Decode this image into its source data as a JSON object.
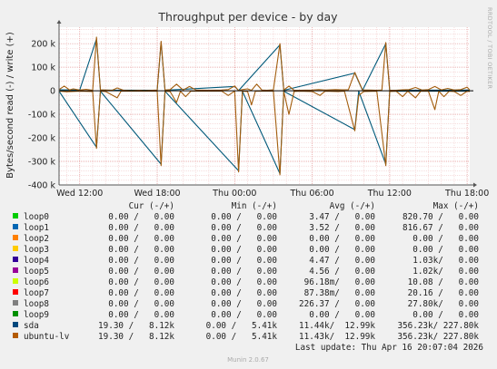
{
  "chart_data": {
    "type": "line",
    "title": "Throughput per device - by day",
    "ylabel": "Bytes/second read (-) / write (+)",
    "ylim": [
      -400000,
      270000
    ],
    "yticks": [
      {
        "v": 200000,
        "label": "200 k"
      },
      {
        "v": 100000,
        "label": "100 k"
      },
      {
        "v": 0,
        "label": "0"
      },
      {
        "v": -100000,
        "label": "-100 k"
      },
      {
        "v": -200000,
        "label": "-200 k"
      },
      {
        "v": -300000,
        "label": "-300 k"
      },
      {
        "v": -400000,
        "label": "-400 k"
      }
    ],
    "xlim": [
      -1.6,
      30.2
    ],
    "xticks": [
      {
        "h": 0,
        "label": "Wed 12:00"
      },
      {
        "h": 6,
        "label": "Wed 18:00"
      },
      {
        "h": 12,
        "label": "Thu 00:00"
      },
      {
        "h": 18,
        "label": "Thu 06:00"
      },
      {
        "h": 24,
        "label": "Thu 12:00"
      },
      {
        "h": 30,
        "label": "Thu 18:00"
      }
    ],
    "x_unit": "hours since Wed 12:00",
    "grid": true,
    "series": [
      {
        "name": "ubuntu-lv",
        "color": "#a35d0d",
        "write_points": [
          [
            -1.6,
            5000
          ],
          [
            -1.2,
            20000
          ],
          [
            -0.8,
            4000
          ],
          [
            -0.5,
            8000
          ],
          [
            0,
            3000
          ],
          [
            0.5,
            6000
          ],
          [
            1,
            2000
          ],
          [
            1.3,
            228000
          ],
          [
            1.6,
            4000
          ],
          [
            2,
            3000
          ],
          [
            2.5,
            2000
          ],
          [
            2.9,
            12000
          ],
          [
            3.4,
            2000
          ],
          [
            4,
            1000
          ],
          [
            4.6,
            2000
          ],
          [
            5,
            1000
          ],
          [
            5.6,
            2000
          ],
          [
            6,
            3000
          ],
          [
            6.3,
            210000
          ],
          [
            6.6,
            3000
          ],
          [
            7,
            5000
          ],
          [
            7.5,
            28000
          ],
          [
            8,
            3000
          ],
          [
            8.5,
            18000
          ],
          [
            9,
            3000
          ],
          [
            10,
            2000
          ],
          [
            11,
            3000
          ],
          [
            11.5,
            5000
          ],
          [
            12,
            20000
          ],
          [
            12.3,
            1000
          ],
          [
            12.6,
            5000
          ],
          [
            13,
            8000
          ],
          [
            13.3,
            2000
          ],
          [
            13.7,
            28000
          ],
          [
            14.1,
            3000
          ],
          [
            14.5,
            2000
          ],
          [
            15,
            4000
          ],
          [
            15.5,
            200000
          ],
          [
            15.8,
            3000
          ],
          [
            16.2,
            20000
          ],
          [
            16.6,
            2000
          ],
          [
            17,
            2000
          ],
          [
            18,
            3000
          ],
          [
            18.5,
            5000
          ],
          [
            19,
            3000
          ],
          [
            19.8,
            5000
          ],
          [
            20.3,
            4000
          ],
          [
            20.8,
            4000
          ],
          [
            21.3,
            78000
          ],
          [
            21.6,
            40000
          ],
          [
            21.9,
            3000
          ],
          [
            22.4,
            3000
          ],
          [
            23,
            2000
          ],
          [
            23.4,
            3000
          ],
          [
            23.7,
            205000
          ],
          [
            24,
            2000
          ],
          [
            24.5,
            2000
          ],
          [
            25,
            4000
          ],
          [
            25.5,
            5000
          ],
          [
            26,
            14000
          ],
          [
            26.5,
            3000
          ],
          [
            27,
            5000
          ],
          [
            27.5,
            18000
          ],
          [
            28,
            4000
          ],
          [
            28.5,
            10000
          ],
          [
            29,
            3000
          ],
          [
            29.5,
            5000
          ],
          [
            30,
            15000
          ],
          [
            30.2,
            3000
          ]
        ],
        "read_points": [
          [
            -1.6,
            -2000
          ],
          [
            -1,
            -4000
          ],
          [
            0,
            -2000
          ],
          [
            1,
            -3000
          ],
          [
            1.3,
            -245000
          ],
          [
            1.6,
            -2000
          ],
          [
            2,
            -3000
          ],
          [
            2.9,
            -30000
          ],
          [
            3.2,
            -2000
          ],
          [
            4,
            -1000
          ],
          [
            5,
            -2000
          ],
          [
            6,
            -1000
          ],
          [
            6.3,
            -318000
          ],
          [
            6.6,
            -2000
          ],
          [
            7,
            -3000
          ],
          [
            7.5,
            -50000
          ],
          [
            7.8,
            -2000
          ],
          [
            8.2,
            -25000
          ],
          [
            8.6,
            -2000
          ],
          [
            10,
            -1000
          ],
          [
            11,
            -2000
          ],
          [
            11.5,
            -20000
          ],
          [
            12,
            -1000
          ],
          [
            12.3,
            -345000
          ],
          [
            12.6,
            -2000
          ],
          [
            13,
            -3000
          ],
          [
            13.3,
            -60000
          ],
          [
            13.6,
            -2000
          ],
          [
            14,
            -1000
          ],
          [
            15,
            -2000
          ],
          [
            15.5,
            -357000
          ],
          [
            15.8,
            -3000
          ],
          [
            16.2,
            -100000
          ],
          [
            16.6,
            -3000
          ],
          [
            17,
            -2000
          ],
          [
            18,
            -3000
          ],
          [
            18.6,
            -20000
          ],
          [
            19,
            -2000
          ],
          [
            20,
            -3000
          ],
          [
            20.5,
            -2000
          ],
          [
            21.3,
            -170000
          ],
          [
            21.6,
            -20000
          ],
          [
            22,
            -3000
          ],
          [
            23,
            -2000
          ],
          [
            23.7,
            -318000
          ],
          [
            24,
            -3000
          ],
          [
            24.5,
            -2000
          ],
          [
            25,
            -25000
          ],
          [
            25.4,
            -2000
          ],
          [
            26,
            -30000
          ],
          [
            26.4,
            -2000
          ],
          [
            27,
            -2000
          ],
          [
            27.5,
            -80000
          ],
          [
            27.8,
            -2000
          ],
          [
            28.2,
            -25000
          ],
          [
            28.6,
            -2000
          ],
          [
            29,
            -3000
          ],
          [
            29.5,
            -20000
          ],
          [
            30,
            -2000
          ],
          [
            30.2,
            -3000
          ]
        ]
      },
      {
        "name": "sda",
        "color": "#00597a",
        "write_points": [
          [
            -1.6,
            4000
          ],
          [
            0,
            3000
          ],
          [
            1.3,
            220000
          ],
          [
            1.6,
            3000
          ],
          [
            6,
            2000
          ],
          [
            6.3,
            205000
          ],
          [
            6.6,
            2000
          ],
          [
            12,
            18000
          ],
          [
            12.3,
            1000
          ],
          [
            15.5,
            195000
          ],
          [
            15.8,
            2000
          ],
          [
            21.3,
            75000
          ],
          [
            21.9,
            2000
          ],
          [
            23.7,
            200000
          ],
          [
            24,
            2000
          ],
          [
            30.2,
            3000
          ]
        ],
        "read_points": [
          [
            -1.6,
            -2000
          ],
          [
            1.3,
            -240000
          ],
          [
            1.6,
            -2000
          ],
          [
            6.3,
            -312000
          ],
          [
            6.6,
            -2000
          ],
          [
            12.3,
            -340000
          ],
          [
            12.6,
            -2000
          ],
          [
            15.5,
            -352000
          ],
          [
            15.8,
            -2000
          ],
          [
            21.3,
            -165000
          ],
          [
            21.6,
            -2000
          ],
          [
            23.7,
            -312000
          ],
          [
            24,
            -2000
          ],
          [
            30.2,
            -2000
          ]
        ]
      }
    ]
  },
  "side_text": "RRDTOOL / TOBI OETIKER",
  "legend": {
    "headers": {
      "cur": "Cur (-/+)",
      "min": "Min (-/+)",
      "avg": "Avg (-/+)",
      "max": "Max (-/+)"
    },
    "rows": [
      {
        "name": "loop0",
        "color": "#00cc00",
        "cur": "0.00 /   0.00",
        "min": "0.00 /   0.00",
        "avg": "3.47 /   0.00",
        "max": "820.70 /   0.00"
      },
      {
        "name": "loop1",
        "color": "#0066b3",
        "cur": "0.00 /   0.00",
        "min": "0.00 /   0.00",
        "avg": "3.52 /   0.00",
        "max": "816.67 /   0.00"
      },
      {
        "name": "loop2",
        "color": "#ff8000",
        "cur": "0.00 /   0.00",
        "min": "0.00 /   0.00",
        "avg": "0.00 /   0.00",
        "max": "0.00 /   0.00"
      },
      {
        "name": "loop3",
        "color": "#ffcc00",
        "cur": "0.00 /   0.00",
        "min": "0.00 /   0.00",
        "avg": "0.00 /   0.00",
        "max": "0.00 /   0.00"
      },
      {
        "name": "loop4",
        "color": "#330099",
        "cur": "0.00 /   0.00",
        "min": "0.00 /   0.00",
        "avg": "4.47 /   0.00",
        "max": "1.03k/   0.00"
      },
      {
        "name": "loop5",
        "color": "#990099",
        "cur": "0.00 /   0.00",
        "min": "0.00 /   0.00",
        "avg": "4.56 /   0.00",
        "max": "1.02k/   0.00"
      },
      {
        "name": "loop6",
        "color": "#ccff00",
        "cur": "0.00 /   0.00",
        "min": "0.00 /   0.00",
        "avg": "96.18m/   0.00",
        "max": "10.08 /   0.00"
      },
      {
        "name": "loop7",
        "color": "#ff0000",
        "cur": "0.00 /   0.00",
        "min": "0.00 /   0.00",
        "avg": "87.38m/   0.00",
        "max": "20.16 /   0.00"
      },
      {
        "name": "loop8",
        "color": "#808080",
        "cur": "0.00 /   0.00",
        "min": "0.00 /   0.00",
        "avg": "226.37 /   0.00",
        "max": "27.80k/   0.00"
      },
      {
        "name": "loop9",
        "color": "#008f00",
        "cur": "0.00 /   0.00",
        "min": "0.00 /   0.00",
        "avg": "0.00 /   0.00",
        "max": "0.00 /   0.00"
      },
      {
        "name": "sda",
        "color": "#00487d",
        "cur": "19.30 /   8.12k",
        "min": "0.00 /   5.41k",
        "avg": "11.44k/  12.99k",
        "max": "356.23k/ 227.80k"
      },
      {
        "name": "ubuntu-lv",
        "color": "#b35a00",
        "cur": "19.30 /   8.12k",
        "min": "0.00 /   5.41k",
        "avg": "11.43k/  12.99k",
        "max": "356.23k/ 227.80k"
      }
    ]
  },
  "last_update": "Last update: Thu Apr 16 20:07:04 2026",
  "footer": "Munin 2.0.67"
}
